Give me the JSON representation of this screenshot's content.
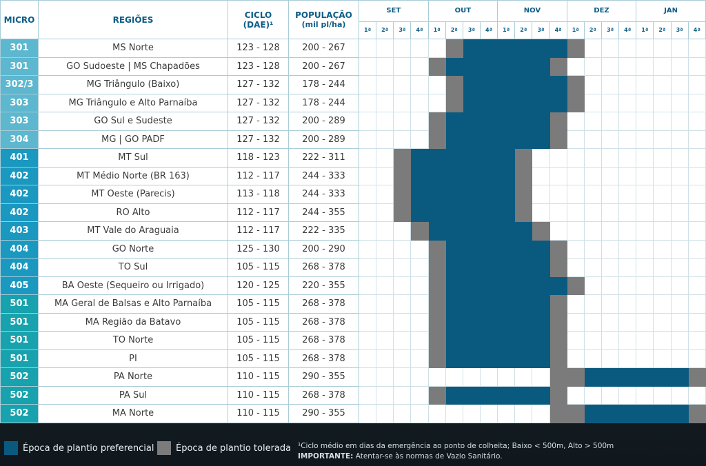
{
  "header": {
    "micro": "MICRO",
    "regioes": "REGIÕES",
    "ciclo": "CICLO",
    "ciclo_unit": "(DAE)¹",
    "populacao": "POPULAÇÃO",
    "populacao_unit": "(mil pl/ha)",
    "months": [
      "SET",
      "OUT",
      "NOV",
      "DEZ",
      "JAN"
    ],
    "week_labels": [
      "1ª",
      "2ª",
      "3ª",
      "4ª"
    ]
  },
  "legend": [
    {
      "label": "Época de plantio preferencial",
      "color": "#0a5a80"
    },
    {
      "label": "Época de plantio tolerada",
      "color": "#7b7b7b"
    }
  ],
  "footnote": {
    "text": "¹Ciclo médio em dias da emergência ao ponto de colheita; Baixo < 500m, Alto > 500m",
    "important_label": "IMPORTANTE:",
    "important_text": "Atentar-se às normas de Vazio Sanitário."
  },
  "table": {
    "rows": [
      {
        "micro": "301",
        "micro_color": "#5cb7cf",
        "regiao": "MS Norte",
        "ciclo": "123 - 128",
        "populacao": "200 - 267",
        "weeks": [
          null,
          null,
          null,
          null,
          null,
          1,
          0,
          0,
          0,
          0,
          0,
          0,
          1,
          null,
          null,
          null,
          null,
          null,
          null,
          null
        ]
      },
      {
        "micro": "301",
        "micro_color": "#5cb7cf",
        "regiao": "GO Sudoeste | MS Chapadões",
        "ciclo": "123 - 128",
        "populacao": "200 - 267",
        "weeks": [
          null,
          null,
          null,
          null,
          1,
          0,
          0,
          0,
          0,
          0,
          0,
          1,
          null,
          null,
          null,
          null,
          null,
          null,
          null,
          null
        ]
      },
      {
        "micro": "302/3",
        "micro_color": "#5cb7cf",
        "regiao": "MG Triângulo (Baixo)",
        "ciclo": "127 - 132",
        "populacao": "178 - 244",
        "weeks": [
          null,
          null,
          null,
          null,
          null,
          1,
          0,
          0,
          0,
          0,
          0,
          0,
          1,
          null,
          null,
          null,
          null,
          null,
          null,
          null
        ]
      },
      {
        "micro": "303",
        "micro_color": "#5cb7cf",
        "regiao": "MG Triângulo e Alto Parnaíba",
        "ciclo": "127 - 132",
        "populacao": "178 - 244",
        "weeks": [
          null,
          null,
          null,
          null,
          null,
          1,
          0,
          0,
          0,
          0,
          0,
          0,
          1,
          null,
          null,
          null,
          null,
          null,
          null,
          null
        ]
      },
      {
        "micro": "303",
        "micro_color": "#5cb7cf",
        "regiao": "GO Sul e Sudeste",
        "ciclo": "127 - 132",
        "populacao": "200 - 289",
        "weeks": [
          null,
          null,
          null,
          null,
          1,
          0,
          0,
          0,
          0,
          0,
          0,
          1,
          null,
          null,
          null,
          null,
          null,
          null,
          null,
          null
        ]
      },
      {
        "micro": "304",
        "micro_color": "#5cb7cf",
        "regiao": "MG | GO PADF",
        "ciclo": "127 - 132",
        "populacao": "200 - 289",
        "weeks": [
          null,
          null,
          null,
          null,
          1,
          0,
          0,
          0,
          0,
          0,
          0,
          1,
          null,
          null,
          null,
          null,
          null,
          null,
          null,
          null
        ]
      },
      {
        "micro": "401",
        "micro_color": "#1a98c0",
        "regiao": "MT Sul",
        "ciclo": "118 - 123",
        "populacao": "222 - 311",
        "weeks": [
          null,
          null,
          1,
          0,
          0,
          0,
          0,
          0,
          0,
          1,
          null,
          null,
          null,
          null,
          null,
          null,
          null,
          null,
          null,
          null
        ]
      },
      {
        "micro": "402",
        "micro_color": "#1a98c0",
        "regiao": "MT Médio Norte (BR 163)",
        "ciclo": "112 - 117",
        "populacao": "244 - 333",
        "weeks": [
          null,
          null,
          1,
          0,
          0,
          0,
          0,
          0,
          0,
          1,
          null,
          null,
          null,
          null,
          null,
          null,
          null,
          null,
          null,
          null
        ]
      },
      {
        "micro": "402",
        "micro_color": "#1a98c0",
        "regiao": "MT Oeste (Parecis)",
        "ciclo": "113 - 118",
        "populacao": "244 - 333",
        "weeks": [
          null,
          null,
          1,
          0,
          0,
          0,
          0,
          0,
          0,
          1,
          null,
          null,
          null,
          null,
          null,
          null,
          null,
          null,
          null,
          null
        ]
      },
      {
        "micro": "402",
        "micro_color": "#1a98c0",
        "regiao": "RO Alto",
        "ciclo": "112 - 117",
        "populacao": "244 - 355",
        "weeks": [
          null,
          null,
          1,
          0,
          0,
          0,
          0,
          0,
          0,
          1,
          null,
          null,
          null,
          null,
          null,
          null,
          null,
          null,
          null,
          null
        ]
      },
      {
        "micro": "403",
        "micro_color": "#1a98c0",
        "regiao": "MT Vale do Araguaia",
        "ciclo": "112 - 117",
        "populacao": "222 - 335",
        "weeks": [
          null,
          null,
          null,
          1,
          0,
          0,
          0,
          0,
          0,
          0,
          1,
          null,
          null,
          null,
          null,
          null,
          null,
          null,
          null,
          null
        ]
      },
      {
        "micro": "404",
        "micro_color": "#1a98c0",
        "regiao": "GO Norte",
        "ciclo": "125 - 130",
        "populacao": "200 - 290",
        "weeks": [
          null,
          null,
          null,
          null,
          1,
          0,
          0,
          0,
          0,
          0,
          0,
          1,
          null,
          null,
          null,
          null,
          null,
          null,
          null,
          null
        ]
      },
      {
        "micro": "404",
        "micro_color": "#1a98c0",
        "regiao": "TO Sul",
        "ciclo": "105 - 115",
        "populacao": "268 - 378",
        "weeks": [
          null,
          null,
          null,
          null,
          1,
          0,
          0,
          0,
          0,
          0,
          0,
          1,
          null,
          null,
          null,
          null,
          null,
          null,
          null,
          null
        ]
      },
      {
        "micro": "405",
        "micro_color": "#1a98c0",
        "regiao": "BA Oeste (Sequeiro ou Irrigado)",
        "ciclo": "120 - 125",
        "populacao": "220 - 355",
        "weeks": [
          null,
          null,
          null,
          null,
          1,
          0,
          0,
          0,
          0,
          0,
          0,
          0,
          1,
          null,
          null,
          null,
          null,
          null,
          null,
          null
        ]
      },
      {
        "micro": "501",
        "micro_color": "#17a2ad",
        "regiao": "MA Geral de Balsas e Alto Parnaíba",
        "ciclo": "105 - 115",
        "populacao": "268 - 378",
        "weeks": [
          null,
          null,
          null,
          null,
          1,
          0,
          0,
          0,
          0,
          0,
          0,
          1,
          null,
          null,
          null,
          null,
          null,
          null,
          null,
          null
        ]
      },
      {
        "micro": "501",
        "micro_color": "#17a2ad",
        "regiao": "MA Região da Batavo",
        "ciclo": "105 - 115",
        "populacao": "268 - 378",
        "weeks": [
          null,
          null,
          null,
          null,
          1,
          0,
          0,
          0,
          0,
          0,
          0,
          1,
          null,
          null,
          null,
          null,
          null,
          null,
          null,
          null
        ]
      },
      {
        "micro": "501",
        "micro_color": "#17a2ad",
        "regiao": "TO Norte",
        "ciclo": "105 - 115",
        "populacao": "268 - 378",
        "weeks": [
          null,
          null,
          null,
          null,
          1,
          0,
          0,
          0,
          0,
          0,
          0,
          1,
          null,
          null,
          null,
          null,
          null,
          null,
          null,
          null
        ]
      },
      {
        "micro": "501",
        "micro_color": "#17a2ad",
        "regiao": "PI",
        "ciclo": "105 - 115",
        "populacao": "268 - 378",
        "weeks": [
          null,
          null,
          null,
          null,
          1,
          0,
          0,
          0,
          0,
          0,
          0,
          1,
          null,
          null,
          null,
          null,
          null,
          null,
          null,
          null
        ]
      },
      {
        "micro": "502",
        "micro_color": "#17a2ad",
        "regiao": "PA Norte",
        "ciclo": "110 - 115",
        "populacao": "290 - 355",
        "weeks": [
          null,
          null,
          null,
          null,
          null,
          null,
          null,
          null,
          null,
          null,
          null,
          1,
          1,
          0,
          0,
          0,
          0,
          0,
          0,
          1
        ]
      },
      {
        "micro": "502",
        "micro_color": "#17a2ad",
        "regiao": "PA Sul",
        "ciclo": "110 - 115",
        "populacao": "268 - 378",
        "weeks": [
          null,
          null,
          null,
          null,
          1,
          0,
          0,
          0,
          0,
          0,
          0,
          1,
          null,
          null,
          null,
          null,
          null,
          null,
          null,
          null
        ]
      },
      {
        "micro": "502",
        "micro_color": "#17a2ad",
        "regiao": "MA Norte",
        "ciclo": "110 - 115",
        "populacao": "290 - 355",
        "weeks": [
          null,
          null,
          null,
          null,
          null,
          null,
          null,
          null,
          null,
          null,
          null,
          1,
          1,
          0,
          0,
          0,
          0,
          0,
          0,
          1
        ]
      }
    ]
  }
}
